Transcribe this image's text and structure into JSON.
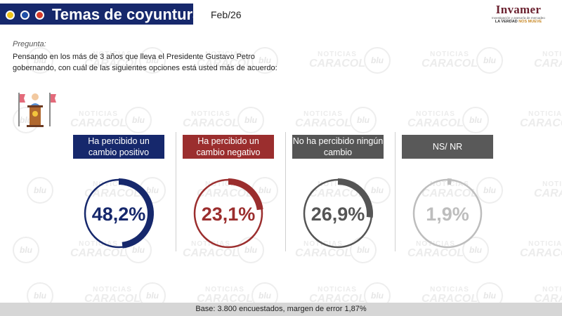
{
  "header": {
    "title": "Temas de coyuntura",
    "date": "Feb/26",
    "dots": [
      "#f0c419",
      "#1f4fa8",
      "#d43a2a"
    ]
  },
  "logo": {
    "name": "Invamer",
    "subtitle": "Investigación y asesoría de mercadeo",
    "tagline_a": "LA VERDAD",
    "tagline_b": "NOS MUEVE"
  },
  "question": {
    "label": "Pregunta:",
    "text": "Pensando en los más de 3 años que lleva el Presidente Gustavo Petro gobernando, con cuál de las siguientes opciones está usted más de acuerdo:"
  },
  "chart_data": {
    "type": "donut",
    "categories": [
      "Ha percibido un cambio positivo",
      "Ha percibido un cambio negativo",
      "No ha percibido ningún cambio",
      "NS/ NR"
    ],
    "values": [
      48.2,
      23.1,
      26.9,
      1.9
    ],
    "value_labels": [
      "48,2%",
      "23,1%",
      "26,9%",
      "1,9%"
    ],
    "colors": [
      "#16286c",
      "#9b2e2e",
      "#555555",
      "#bdbdbd"
    ],
    "title": "",
    "unit": "%"
  },
  "columns": [
    {
      "label": "Ha percibido un cambio positivo",
      "header_color": "#16286c",
      "value_label": "48,2%"
    },
    {
      "label": "Ha percibido un cambio negativo",
      "header_color": "#9b2e2e",
      "value_label": "23,1%"
    },
    {
      "label": "No ha percibido ningún cambio",
      "header_color": "#555555",
      "value_label": "26,9%"
    },
    {
      "label": "NS/ NR",
      "header_color": "#595959",
      "value_label": "1,9%"
    }
  ],
  "footer": {
    "text": "Base: 3.800 encuestados, margen de error 1,87%"
  },
  "watermark": {
    "brand_top": "NOTICIAS",
    "brand_bottom": "CARACOL",
    "radio": "blu"
  }
}
